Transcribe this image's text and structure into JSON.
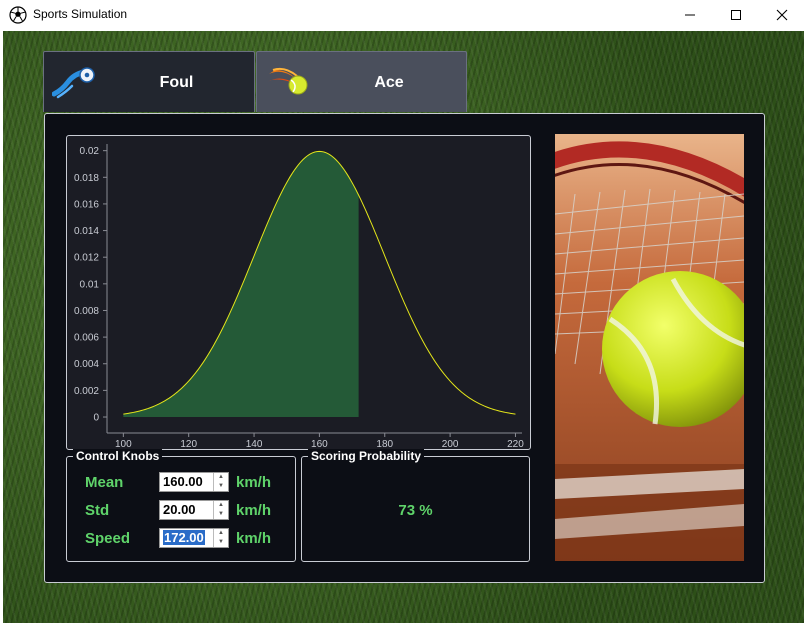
{
  "window": {
    "title": "Sports Simulation"
  },
  "tabs": [
    {
      "label": "Foul",
      "icon": "blue-ball-icon"
    },
    {
      "label": "Ace",
      "icon": "fire-tennis-ball-icon"
    }
  ],
  "chart_data": {
    "type": "area",
    "x_ticks": [
      "100",
      "120",
      "140",
      "160",
      "180",
      "200",
      "220"
    ],
    "y_ticks": [
      "0",
      "0.002",
      "0.004",
      "0.006",
      "0.008",
      "0.01",
      "0.012",
      "0.014",
      "0.016",
      "0.018",
      "0.02"
    ],
    "xlim": [
      95,
      222
    ],
    "ylim": [
      -0.0012,
      0.0205
    ],
    "mean": 160,
    "std": 20,
    "x_range": [
      100,
      220
    ],
    "fill_to": 172,
    "line_color": "#e4e61a",
    "fill_color": "#245a37"
  },
  "knobs": {
    "title": "Control Knobs",
    "rows": [
      {
        "label": "Mean",
        "value": "160.00",
        "unit": "km/h"
      },
      {
        "label": "Std",
        "value": "20.00",
        "unit": "km/h"
      },
      {
        "label": "Speed",
        "value": "172.00",
        "unit": "km/h"
      }
    ]
  },
  "scoring": {
    "title": "Scoring Probability",
    "value": "73 %"
  },
  "colors": {
    "accent_green": "#5fd36a",
    "panel_bg": "#0c0e15"
  }
}
